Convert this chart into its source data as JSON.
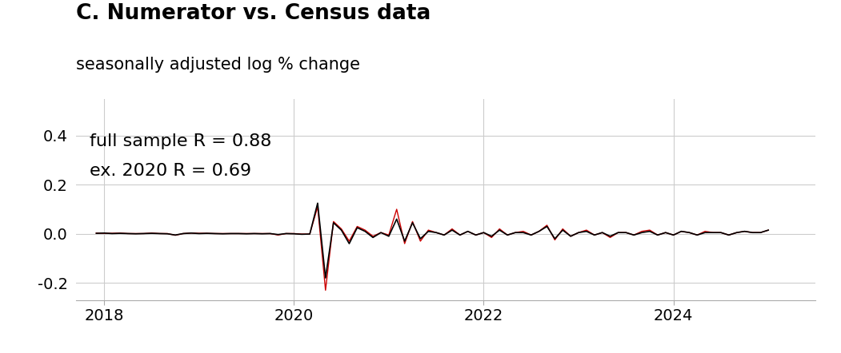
{
  "title": "C. Numerator vs. Census data",
  "subtitle": "seasonally adjusted log % change",
  "annotation_line1": "full sample R = 0.88",
  "annotation_line2": "ex. 2020 R = 0.69",
  "xlim": [
    2017.7,
    2025.5
  ],
  "ylim": [
    -0.27,
    0.55
  ],
  "yticks": [
    -0.2,
    0.0,
    0.2,
    0.4
  ],
  "xticks": [
    2018,
    2020,
    2022,
    2024
  ],
  "line1_color": "#000000",
  "line2_color": "#cc0000",
  "background_color": "#ffffff",
  "grid_color": "#cccccc",
  "title_fontsize": 19,
  "subtitle_fontsize": 15,
  "annotation_fontsize": 16,
  "tick_fontsize": 14,
  "x": [
    2017.917,
    2018.0,
    2018.083,
    2018.167,
    2018.25,
    2018.333,
    2018.417,
    2018.5,
    2018.583,
    2018.667,
    2018.75,
    2018.833,
    2018.917,
    2019.0,
    2019.083,
    2019.167,
    2019.25,
    2019.333,
    2019.417,
    2019.5,
    2019.583,
    2019.667,
    2019.75,
    2019.833,
    2019.917,
    2020.0,
    2020.083,
    2020.167,
    2020.25,
    2020.333,
    2020.417,
    2020.5,
    2020.583,
    2020.667,
    2020.75,
    2020.833,
    2020.917,
    2021.0,
    2021.083,
    2021.167,
    2021.25,
    2021.333,
    2021.417,
    2021.5,
    2021.583,
    2021.667,
    2021.75,
    2021.833,
    2021.917,
    2022.0,
    2022.083,
    2022.167,
    2022.25,
    2022.333,
    2022.417,
    2022.5,
    2022.583,
    2022.667,
    2022.75,
    2022.833,
    2022.917,
    2023.0,
    2023.083,
    2023.167,
    2023.25,
    2023.333,
    2023.417,
    2023.5,
    2023.583,
    2023.667,
    2023.75,
    2023.833,
    2023.917,
    2024.0,
    2024.083,
    2024.167,
    2024.25,
    2024.333,
    2024.417,
    2024.5,
    2024.583,
    2024.667,
    2024.75,
    2024.833,
    2024.917,
    2025.0
  ],
  "y_black": [
    0.002,
    0.003,
    0.001,
    0.002,
    0.001,
    0.0,
    0.001,
    0.002,
    0.001,
    0.0,
    -0.005,
    0.001,
    0.003,
    0.001,
    0.002,
    0.001,
    0.0,
    0.001,
    0.001,
    0.0,
    0.001,
    0.0,
    0.001,
    -0.003,
    0.001,
    0.0,
    -0.002,
    -0.001,
    0.125,
    -0.18,
    0.045,
    0.015,
    -0.04,
    0.025,
    0.01,
    -0.015,
    0.005,
    -0.01,
    0.06,
    -0.03,
    0.045,
    -0.02,
    0.01,
    0.005,
    -0.005,
    0.015,
    -0.005,
    0.01,
    -0.005,
    0.005,
    -0.01,
    0.015,
    -0.005,
    0.005,
    0.005,
    -0.005,
    0.01,
    0.03,
    -0.02,
    0.015,
    -0.01,
    0.005,
    0.01,
    -0.005,
    0.005,
    -0.01,
    0.005,
    0.005,
    -0.005,
    0.005,
    0.01,
    -0.005,
    0.005,
    -0.005,
    0.01,
    0.005,
    -0.005,
    0.005,
    0.005,
    0.005,
    -0.005,
    0.005,
    0.01,
    0.005,
    0.005,
    0.015
  ],
  "y_red": [
    0.003,
    0.002,
    0.002,
    0.003,
    0.001,
    0.001,
    0.001,
    0.003,
    0.001,
    0.001,
    -0.006,
    0.001,
    0.003,
    0.002,
    0.002,
    0.001,
    0.001,
    0.001,
    0.001,
    0.001,
    0.001,
    0.001,
    0.001,
    -0.005,
    0.001,
    0.001,
    -0.001,
    -0.001,
    0.11,
    -0.23,
    0.05,
    0.02,
    -0.03,
    0.03,
    0.015,
    -0.01,
    0.005,
    -0.005,
    0.1,
    -0.04,
    0.05,
    -0.03,
    0.015,
    0.005,
    -0.005,
    0.02,
    -0.005,
    0.01,
    -0.005,
    0.005,
    -0.015,
    0.02,
    -0.005,
    0.005,
    0.01,
    -0.005,
    0.01,
    0.035,
    -0.025,
    0.02,
    -0.01,
    0.005,
    0.015,
    -0.005,
    0.005,
    -0.015,
    0.005,
    0.005,
    -0.005,
    0.01,
    0.015,
    -0.005,
    0.005,
    -0.005,
    0.01,
    0.005,
    -0.005,
    0.01,
    0.005,
    0.005,
    -0.005,
    0.005,
    0.01,
    0.005,
    0.005,
    0.015
  ]
}
